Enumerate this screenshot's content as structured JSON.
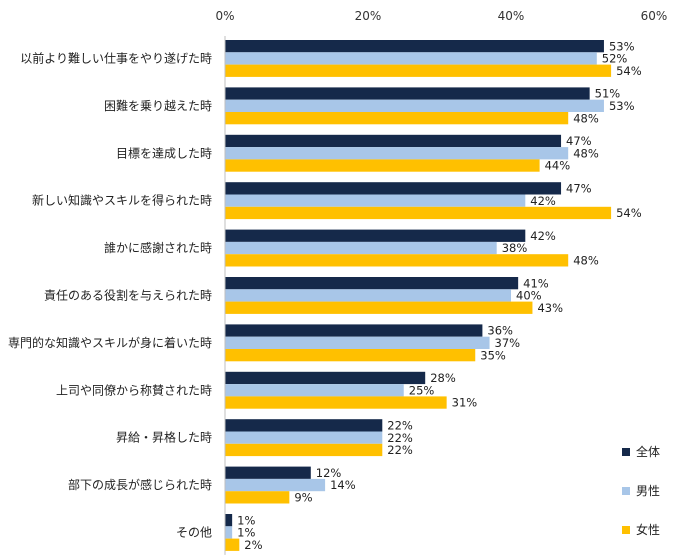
{
  "chart_data": {
    "type": "bar",
    "orientation": "horizontal",
    "title": "",
    "xlabel": "",
    "ylabel": "",
    "xlim": [
      0,
      60
    ],
    "x_ticks": [
      "0%",
      "20%",
      "40%",
      "60%"
    ],
    "x_tick_values": [
      0,
      20,
      40,
      60
    ],
    "grid": false,
    "legend_position": "bottom-right",
    "categories": [
      "以前より難しい仕事をやり遂げた時",
      "困難を乗り越えた時",
      "目標を達成した時",
      "新しい知識やスキルを得られた時",
      "誰かに感謝された時",
      "責任のある役割を与えられた時",
      "専門的な知識やスキルが身に着いた時",
      "上司や同僚から称賛された時",
      "昇給・昇格した時",
      "部下の成長が感じられた時",
      "その他"
    ],
    "series": [
      {
        "name": "全体",
        "color": "#15294a",
        "values": [
          53,
          51,
          47,
          47,
          42,
          41,
          36,
          28,
          22,
          12,
          1
        ]
      },
      {
        "name": "男性",
        "color": "#a8c6e8",
        "values": [
          52,
          53,
          48,
          42,
          38,
          40,
          37,
          25,
          22,
          14,
          1
        ]
      },
      {
        "name": "女性",
        "color": "#ffc000",
        "values": [
          54,
          48,
          44,
          54,
          48,
          43,
          35,
          31,
          22,
          9,
          2
        ]
      }
    ],
    "value_suffix": "%"
  }
}
